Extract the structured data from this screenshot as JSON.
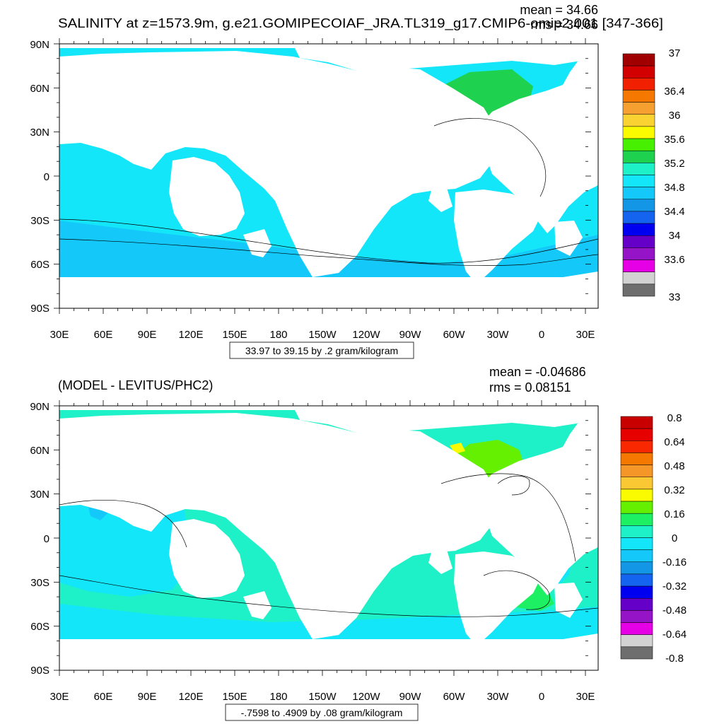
{
  "top_panel": {
    "title": "SALINITY at z=1573.9m, g.e21.GOMIPECOIAF_JRA.TL319_g17.CMIP6-omip2.001 [347-366]",
    "mean_text": "mean = 34.66",
    "rms_text": "rms = 34.66",
    "range_text": "33.97 to 39.15 by .2 gram/kilogram",
    "colorbar_labels": [
      "37",
      "36.4",
      "36",
      "35.6",
      "35.2",
      "34.8",
      "34.4",
      "34",
      "33.6",
      "33"
    ]
  },
  "bottom_panel": {
    "title": "(MODEL - LEVITUS/PHC2)",
    "mean_text": "mean = -0.04686",
    "rms_text": "rms = 0.08151",
    "range_text": "-.7598 to .4909 by .08 gram/kilogram",
    "colorbar_labels": [
      "0.8",
      "0.64",
      "0.48",
      "0.32",
      "0.16",
      "0",
      "-0.16",
      "-0.32",
      "-0.48",
      "-0.64",
      "-0.8"
    ]
  },
  "axes": {
    "lat_labels": [
      "90N",
      "60N",
      "30N",
      "0",
      "30S",
      "60S",
      "90S"
    ],
    "lon_labels": [
      "30E",
      "60E",
      "90E",
      "120E",
      "150E",
      "180",
      "150W",
      "120W",
      "90W",
      "60W",
      "30W",
      "0",
      "30E"
    ]
  },
  "colors": {
    "top_colorbar": [
      "#a00000",
      "#d20000",
      "#f02000",
      "#f57800",
      "#f5a030",
      "#fad232",
      "#fafa00",
      "#46f000",
      "#1ed250",
      "#1ef0c8",
      "#14e6fa",
      "#14c8fa",
      "#1496e6",
      "#1464f0",
      "#0000f0",
      "#6400c8",
      "#9614c8",
      "#e600e6",
      "#d2d2d2",
      "#6e6e6e"
    ],
    "bottom_colorbar": [
      "#c80000",
      "#e60000",
      "#fa2800",
      "#f57800",
      "#f59628",
      "#fac832",
      "#fafa00",
      "#64f000",
      "#1ef064",
      "#1ef0c8",
      "#14e6fa",
      "#14c8fa",
      "#1496e6",
      "#1464f0",
      "#0000f0",
      "#6400c8",
      "#9614c8",
      "#e600e6",
      "#d2d2d2",
      "#6e6e6e"
    ]
  }
}
